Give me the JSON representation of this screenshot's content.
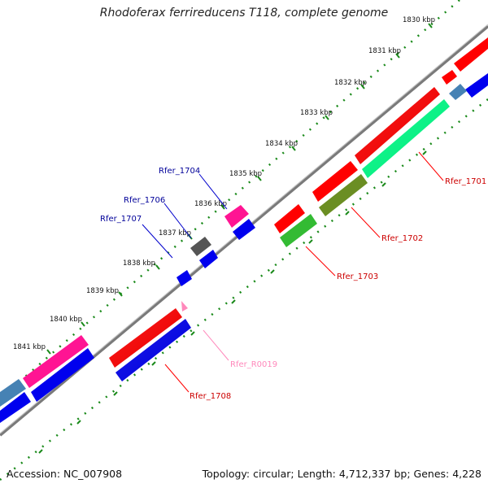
{
  "title": "Rhodoferax ferrireducens T118, complete genome",
  "footer": {
    "accession": "Accession: NC_007908",
    "summary": "Topology: circular; Length: 4,712,337 bp; Genes: 4,228"
  },
  "ticks": [
    "1830 kbp",
    "1831 kbp",
    "1832 kbp",
    "1833 kbp",
    "1834 kbp",
    "1835 kbp",
    "1836 kbp",
    "1837 kbp",
    "1838 kbp",
    "1839 kbp",
    "1840 kbp",
    "1841 kbp"
  ],
  "gene_labels": {
    "rfer_1701": "Rfer_1701",
    "rfer_1702": "Rfer_1702",
    "rfer_1703": "Rfer_1703",
    "rfer_1704": "Rfer_1704",
    "rfer_1706": "Rfer_1706",
    "rfer_1707": "Rfer_1707",
    "rfer_1708": "Rfer_1708",
    "rfer_r0019": "Rfer_R0019"
  },
  "colors": {
    "backbone": "#8a8a8a",
    "tick_dots": "#1a8a1a",
    "red": "#ff0000",
    "blue": "#0000ee",
    "pink": "#ff1493",
    "green_cyan": "#00ff88",
    "olive": "#6b8e23",
    "green": "#33bb33",
    "gray": "#555555",
    "steel": "#4682b4",
    "label_red": "#cc0000",
    "label_blue": "#000099",
    "label_pink": "#ff88bb"
  }
}
